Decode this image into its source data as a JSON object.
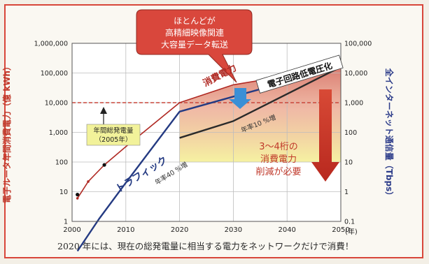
{
  "chart_data": {
    "type": "line",
    "x_axis": {
      "range": [
        2000,
        2050
      ],
      "ticks": [
        2000,
        2010,
        2020,
        2030,
        2040,
        2050
      ],
      "unit_label": "(年)"
    },
    "y_left": {
      "label": "電子ルータ年間消費電力（億 kWh）",
      "scale": "log",
      "range": [
        1,
        1000000
      ],
      "ticks": [
        1,
        10,
        100,
        1000,
        10000,
        100000,
        1000000
      ],
      "tick_labels": [
        "1",
        "10",
        "100",
        "1,000",
        "10,000",
        "100,000",
        "1,000,000"
      ]
    },
    "y_right": {
      "label": "全インターネット通信量（Tbps）",
      "scale": "log",
      "range": [
        0.1,
        100000
      ],
      "ticks": [
        0.1,
        1,
        10,
        100,
        1000,
        10000,
        100000
      ],
      "tick_labels": [
        "0.1",
        "1",
        "10",
        "100",
        "1,000",
        "10,000",
        "100,000"
      ]
    },
    "grid": true,
    "series": [
      {
        "name": "消費電力",
        "color": "#b02a24",
        "axis": "left",
        "x": [
          2001,
          2003,
          2006,
          2010,
          2020,
          2030,
          2050
        ],
        "y": [
          6,
          22,
          80,
          330,
          10000,
          40000,
          160000
        ]
      },
      {
        "name": "トラフィック",
        "color": "#243a82",
        "axis": "right",
        "x": [
          2001,
          2005,
          2010,
          2020,
          2030,
          2050
        ],
        "y": [
          0.01,
          0.12,
          2,
          500,
          1600,
          16000
        ]
      },
      {
        "name": "電子回路低電圧化",
        "color": "#2a2a2a",
        "axis": "left",
        "x": [
          2020,
          2030,
          2050
        ],
        "y": [
          650,
          2400,
          160000
        ]
      }
    ],
    "reference_line": {
      "value": 10000,
      "axis": "left",
      "color": "#c9473c"
    },
    "dots": [
      {
        "x": 2001,
        "y": 8,
        "axis": "left"
      },
      {
        "x": 2006,
        "y": 80,
        "axis": "left"
      }
    ]
  },
  "labels": {
    "callout_lines": [
      "ほとんどが",
      "高精細映像関連",
      "大容量データ転送"
    ],
    "shoohi": "消費電力",
    "circuit": "電子回路低電圧化",
    "rate_upper": "年率10 %増",
    "rate_lower": "年率40 %増",
    "traffic": "トラフィック",
    "annual_gen_line1": "年間総発電量",
    "annual_gen_line2": "（2005年）",
    "reduction_lines": [
      "3～4桁の",
      "消費電力",
      "削減が必要"
    ]
  },
  "caption": "2020 年には、現在の総発電量に相当する電力をネットワークだけで消費！"
}
